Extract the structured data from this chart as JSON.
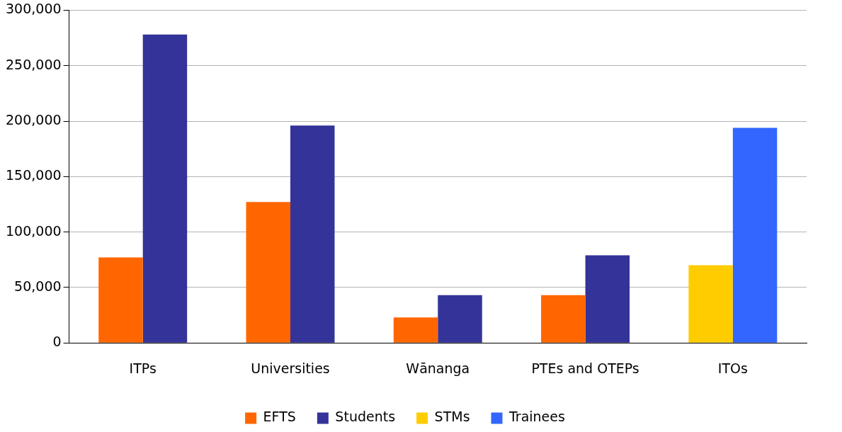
{
  "chart_data": {
    "type": "bar",
    "categories": [
      "ITPs",
      "Universities",
      "Wānanga",
      "PTEs and OTEPs",
      "ITOs"
    ],
    "series": [
      {
        "name": "EFTS",
        "color": "#ff6600",
        "values": [
          77000,
          127000,
          23000,
          43000,
          null
        ]
      },
      {
        "name": "Students",
        "color": "#333399",
        "values": [
          278000,
          196000,
          43000,
          79000,
          null
        ]
      },
      {
        "name": "STMs",
        "color": "#ffcc00",
        "values": [
          null,
          null,
          null,
          null,
          70000
        ]
      },
      {
        "name": "Trainees",
        "color": "#3366ff",
        "values": [
          null,
          null,
          null,
          null,
          194000
        ]
      }
    ],
    "ylim": [
      0,
      300000
    ],
    "yticks": [
      {
        "value": 0,
        "label": "0"
      },
      {
        "value": 50000,
        "label": "50,000"
      },
      {
        "value": 100000,
        "label": "100,000"
      },
      {
        "value": 150000,
        "label": "150,000"
      },
      {
        "value": 200000,
        "label": "200,000"
      },
      {
        "value": 250000,
        "label": "250,000"
      },
      {
        "value": 300000,
        "label": "300,000"
      }
    ],
    "grid": "y",
    "legend": "bottom"
  }
}
